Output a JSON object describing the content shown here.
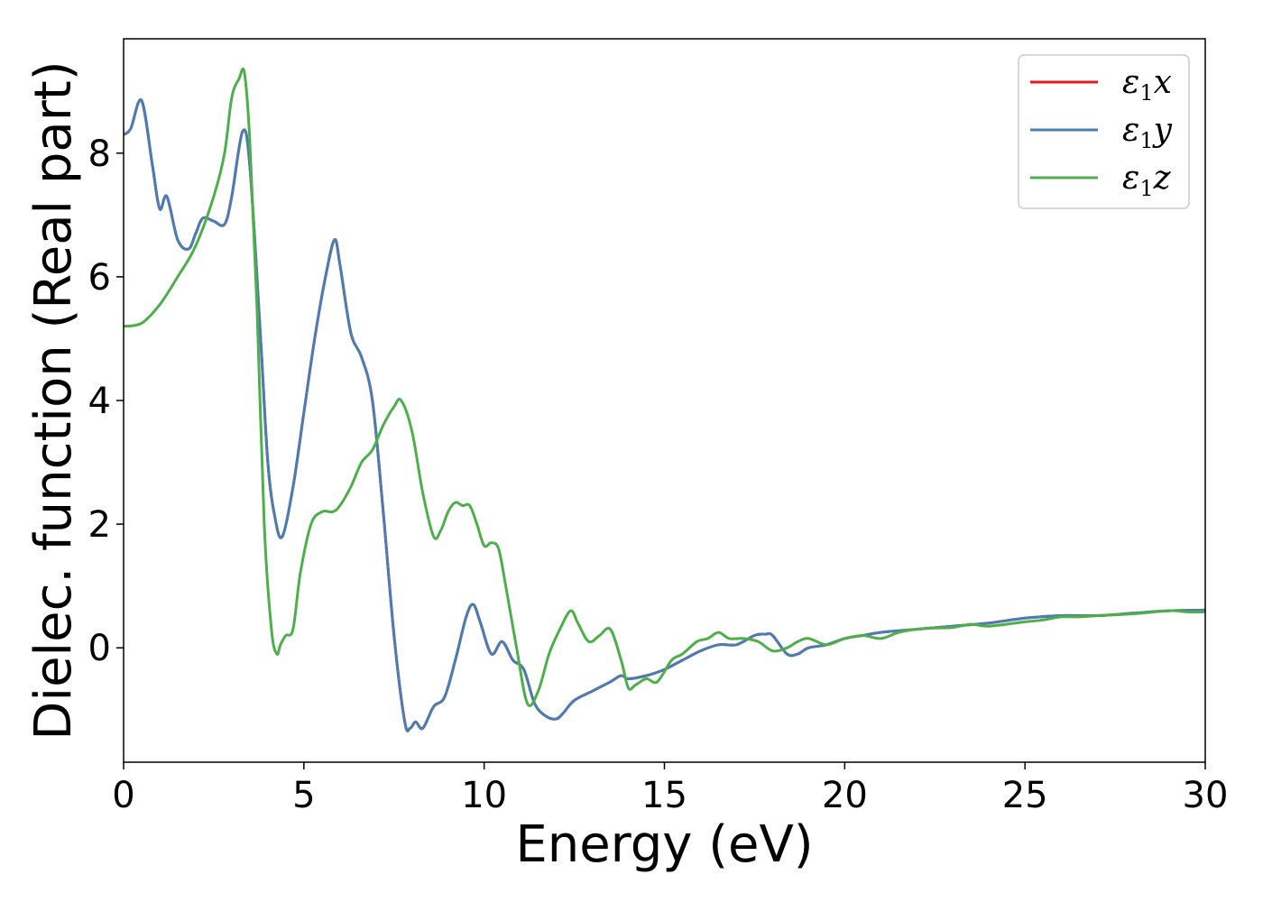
{
  "chart_data": {
    "type": "line",
    "title": "",
    "xlabel": "Energy (eV)",
    "ylabel": "Dielec. function (Real part)",
    "xlim": [
      0,
      30
    ],
    "ylim": [
      -1.85,
      9.85
    ],
    "xticks": [
      "0",
      "5",
      "10",
      "15",
      "20",
      "25",
      "30"
    ],
    "yticks": [
      "0",
      "2",
      "4",
      "6",
      "8"
    ],
    "grid": false,
    "legend_position": "top-right",
    "series": [
      {
        "name": "ε₁x",
        "legend_base": "ε",
        "legend_sub": "1",
        "legend_suffix": "x",
        "color": "#e41a1c",
        "x": [
          0,
          0.2,
          0.5,
          0.8,
          1.0,
          1.2,
          1.5,
          1.8,
          2.0,
          2.2,
          2.5,
          2.8,
          3.0,
          3.3,
          3.5,
          3.8,
          4.0,
          4.2,
          4.4,
          4.7,
          5.0,
          5.3,
          5.6,
          5.85,
          6.0,
          6.3,
          6.6,
          6.9,
          7.2,
          7.5,
          7.8,
          7.95,
          8.1,
          8.3,
          8.6,
          8.9,
          9.2,
          9.5,
          9.7,
          9.9,
          10.2,
          10.5,
          10.8,
          11.1,
          11.4,
          11.7,
          12.0,
          12.2,
          12.5,
          13.0,
          13.5,
          13.8,
          14.0,
          14.5,
          15.0,
          15.5,
          16.0,
          16.5,
          17.0,
          17.5,
          17.8,
          18.0,
          18.4,
          18.7,
          19.0,
          19.5,
          20.0,
          20.5,
          21.0,
          22.0,
          23.0,
          24.0,
          25.0,
          26.0,
          27.0,
          28.0,
          29.0,
          30.0
        ],
        "y": [
          8.3,
          8.4,
          8.85,
          7.8,
          7.1,
          7.3,
          6.6,
          6.45,
          6.7,
          6.95,
          6.9,
          6.85,
          7.3,
          8.35,
          7.8,
          5.0,
          3.0,
          2.1,
          1.8,
          2.6,
          3.8,
          5.0,
          6.0,
          6.6,
          6.2,
          5.1,
          4.7,
          4.0,
          2.2,
          0.2,
          -1.2,
          -1.3,
          -1.2,
          -1.3,
          -0.95,
          -0.8,
          -0.2,
          0.5,
          0.7,
          0.4,
          -0.1,
          0.1,
          -0.2,
          -0.35,
          -0.9,
          -1.1,
          -1.15,
          -1.05,
          -0.85,
          -0.7,
          -0.55,
          -0.45,
          -0.5,
          -0.45,
          -0.35,
          -0.2,
          -0.05,
          0.05,
          0.05,
          0.2,
          0.22,
          0.2,
          -0.1,
          -0.1,
          0.0,
          0.05,
          0.15,
          0.2,
          0.25,
          0.3,
          0.35,
          0.4,
          0.48,
          0.52,
          0.52,
          0.56,
          0.6,
          0.61
        ]
      },
      {
        "name": "ε₁y",
        "legend_base": "ε",
        "legend_sub": "1",
        "legend_suffix": "y",
        "color": "#4a7db3",
        "x": [
          0,
          0.2,
          0.5,
          0.8,
          1.0,
          1.2,
          1.5,
          1.8,
          2.0,
          2.2,
          2.5,
          2.8,
          3.0,
          3.3,
          3.5,
          3.8,
          4.0,
          4.2,
          4.4,
          4.7,
          5.0,
          5.3,
          5.6,
          5.85,
          6.0,
          6.3,
          6.6,
          6.9,
          7.2,
          7.5,
          7.8,
          7.95,
          8.1,
          8.3,
          8.6,
          8.9,
          9.2,
          9.5,
          9.7,
          9.9,
          10.2,
          10.5,
          10.8,
          11.1,
          11.4,
          11.7,
          12.0,
          12.2,
          12.5,
          13.0,
          13.5,
          13.8,
          14.0,
          14.5,
          15.0,
          15.5,
          16.0,
          16.5,
          17.0,
          17.5,
          17.8,
          18.0,
          18.4,
          18.7,
          19.0,
          19.5,
          20.0,
          20.5,
          21.0,
          22.0,
          23.0,
          24.0,
          25.0,
          26.0,
          27.0,
          28.0,
          29.0,
          30.0
        ],
        "y": [
          8.3,
          8.4,
          8.85,
          7.8,
          7.1,
          7.3,
          6.6,
          6.45,
          6.7,
          6.95,
          6.9,
          6.85,
          7.3,
          8.35,
          7.8,
          5.0,
          3.0,
          2.1,
          1.8,
          2.6,
          3.8,
          5.0,
          6.0,
          6.6,
          6.2,
          5.1,
          4.7,
          4.0,
          2.2,
          0.2,
          -1.2,
          -1.3,
          -1.2,
          -1.3,
          -0.95,
          -0.8,
          -0.2,
          0.5,
          0.7,
          0.4,
          -0.1,
          0.1,
          -0.2,
          -0.35,
          -0.9,
          -1.1,
          -1.15,
          -1.05,
          -0.85,
          -0.7,
          -0.55,
          -0.45,
          -0.5,
          -0.45,
          -0.35,
          -0.2,
          -0.05,
          0.05,
          0.05,
          0.2,
          0.22,
          0.2,
          -0.1,
          -0.1,
          0.0,
          0.05,
          0.15,
          0.2,
          0.25,
          0.3,
          0.35,
          0.4,
          0.48,
          0.52,
          0.52,
          0.56,
          0.6,
          0.61
        ]
      },
      {
        "name": "ε₁z",
        "legend_base": "ε",
        "legend_sub": "1",
        "legend_suffix": "z",
        "color": "#4daf4a",
        "x": [
          0,
          0.5,
          1.0,
          1.5,
          2.0,
          2.5,
          2.8,
          3.0,
          3.2,
          3.35,
          3.5,
          3.7,
          3.9,
          4.1,
          4.25,
          4.35,
          4.5,
          4.7,
          4.9,
          5.2,
          5.5,
          5.8,
          6.0,
          6.3,
          6.6,
          6.9,
          7.2,
          7.5,
          7.7,
          8.0,
          8.3,
          8.6,
          8.8,
          9.0,
          9.2,
          9.4,
          9.6,
          9.8,
          10.0,
          10.2,
          10.4,
          10.6,
          10.9,
          11.2,
          11.5,
          11.8,
          12.1,
          12.4,
          12.6,
          12.9,
          13.2,
          13.5,
          13.8,
          14.0,
          14.2,
          14.5,
          14.8,
          15.2,
          15.5,
          15.9,
          16.2,
          16.5,
          16.8,
          17.2,
          17.6,
          18.0,
          18.4,
          18.7,
          19.0,
          19.5,
          20.0,
          20.5,
          21.0,
          21.5,
          22.0,
          22.5,
          23.0,
          23.5,
          24.0,
          25.0,
          25.5,
          26.0,
          26.5,
          27.0,
          28.0,
          29.0,
          29.5,
          30.0
        ],
        "y": [
          5.2,
          5.25,
          5.55,
          6.0,
          6.5,
          7.3,
          8.0,
          8.9,
          9.2,
          9.3,
          8.2,
          5.5,
          2.0,
          0.3,
          -0.1,
          0.05,
          0.2,
          0.3,
          1.2,
          2.0,
          2.2,
          2.2,
          2.3,
          2.6,
          3.0,
          3.2,
          3.6,
          3.9,
          4.0,
          3.5,
          2.5,
          1.8,
          1.9,
          2.2,
          2.35,
          2.3,
          2.3,
          2.0,
          1.65,
          1.7,
          1.6,
          1.0,
          0.0,
          -0.9,
          -0.7,
          -0.1,
          0.3,
          0.6,
          0.4,
          0.1,
          0.2,
          0.3,
          -0.2,
          -0.65,
          -0.6,
          -0.5,
          -0.55,
          -0.2,
          -0.1,
          0.1,
          0.15,
          0.25,
          0.15,
          0.15,
          0.1,
          -0.05,
          0.0,
          0.1,
          0.15,
          0.05,
          0.15,
          0.2,
          0.15,
          0.25,
          0.3,
          0.32,
          0.33,
          0.38,
          0.35,
          0.42,
          0.45,
          0.5,
          0.5,
          0.52,
          0.55,
          0.6,
          0.58,
          0.58
        ]
      }
    ]
  }
}
